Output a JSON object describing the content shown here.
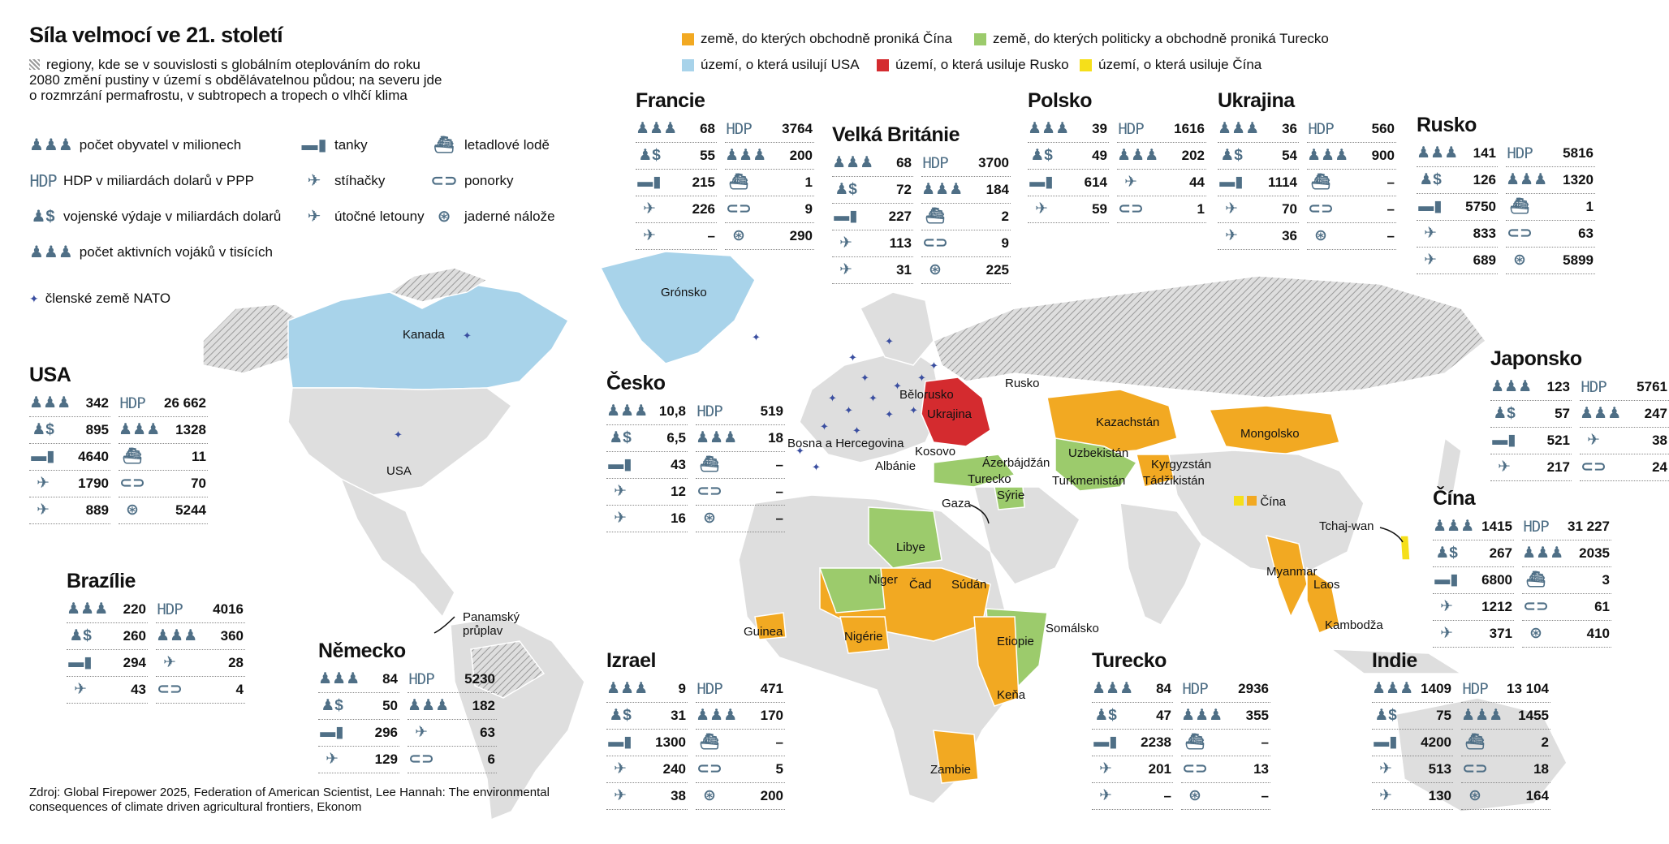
{
  "title": "Síla velmocí ve 21. století",
  "intro": "regiony, kde se v souvislosti s globálním oteplováním do roku 2080 změní pustiny v území s obdělávatelnou půdou; na severu jde o rozmrzání permafrostu, v subtropech a tropech o vlhčí klima",
  "legend": {
    "population": "počet obyvatel v milionech",
    "gdp_icon": "HDP",
    "gdp": "HDP v miliardách dolarů v PPP",
    "military": "vojenské výdaje v miliardách dolarů",
    "soldiers": "počet aktivních vojáků v tisících",
    "tanks": "tanky",
    "fighters": "stíhačky",
    "attack": "útočné letouny",
    "carriers": "letadlové lodě",
    "subs": "ponorky",
    "nukes": "jaderné nálože",
    "nato": "členské země NATO"
  },
  "top_legend": {
    "china_trade": "země, do kterých obchodně proniká Čína",
    "turkey": "země, do kterých politicky a obchodně proniká Turecko",
    "usa": "území, o která usilují USA",
    "russia": "území, o která usiluje Rusko",
    "china": "území, o která usiluje Čína"
  },
  "colors": {
    "china_trade": "#f2a922",
    "turkey": "#9ccb6c",
    "usa": "#a8d3ea",
    "russia": "#d42b2f",
    "china": "#f5df1a",
    "land": "#dedede",
    "icon": "#4f6f86"
  },
  "countries": {
    "usa": {
      "name": "USA",
      "left": [
        {
          "i": "pop",
          "v": "342"
        },
        {
          "i": "mil",
          "v": "895"
        },
        {
          "i": "tank",
          "v": "4640"
        },
        {
          "i": "fight",
          "v": "1790"
        },
        {
          "i": "attack",
          "v": "889"
        }
      ],
      "right": [
        {
          "i": "hdp",
          "v": "26 662"
        },
        {
          "i": "sold",
          "v": "1328"
        },
        {
          "i": "carrier",
          "v": "11"
        },
        {
          "i": "sub",
          "v": "70"
        },
        {
          "i": "nuke",
          "v": "5244"
        }
      ]
    },
    "brazil": {
      "name": "Brazílie",
      "left": [
        {
          "i": "pop",
          "v": "220"
        },
        {
          "i": "mil",
          "v": "260"
        },
        {
          "i": "tank",
          "v": "294"
        },
        {
          "i": "fight",
          "v": "43"
        }
      ],
      "right": [
        {
          "i": "hdp",
          "v": "4016"
        },
        {
          "i": "sold",
          "v": "360"
        },
        {
          "i": "attack",
          "v": "28"
        },
        {
          "i": "sub",
          "v": "4"
        }
      ]
    },
    "germany": {
      "name": "Německo",
      "left": [
        {
          "i": "pop",
          "v": "84"
        },
        {
          "i": "mil",
          "v": "50"
        },
        {
          "i": "tank",
          "v": "296"
        },
        {
          "i": "fight",
          "v": "129"
        }
      ],
      "right": [
        {
          "i": "hdp",
          "v": "5230"
        },
        {
          "i": "sold",
          "v": "182"
        },
        {
          "i": "attack",
          "v": "63"
        },
        {
          "i": "sub",
          "v": "6"
        }
      ]
    },
    "france": {
      "name": "Francie",
      "left": [
        {
          "i": "pop",
          "v": "68"
        },
        {
          "i": "mil",
          "v": "55"
        },
        {
          "i": "tank",
          "v": "215"
        },
        {
          "i": "fight",
          "v": "226"
        },
        {
          "i": "attack",
          "v": "–"
        }
      ],
      "right": [
        {
          "i": "hdp",
          "v": "3764"
        },
        {
          "i": "sold",
          "v": "200"
        },
        {
          "i": "carrier",
          "v": "1"
        },
        {
          "i": "sub",
          "v": "9"
        },
        {
          "i": "nuke",
          "v": "290"
        }
      ]
    },
    "uk": {
      "name": "Velká Británie",
      "left": [
        {
          "i": "pop",
          "v": "68"
        },
        {
          "i": "mil",
          "v": "72"
        },
        {
          "i": "tank",
          "v": "227"
        },
        {
          "i": "fight",
          "v": "113"
        },
        {
          "i": "attack",
          "v": "31"
        }
      ],
      "right": [
        {
          "i": "hdp",
          "v": "3700"
        },
        {
          "i": "sold",
          "v": "184"
        },
        {
          "i": "carrier",
          "v": "2"
        },
        {
          "i": "sub",
          "v": "9"
        },
        {
          "i": "nuke",
          "v": "225"
        }
      ]
    },
    "poland": {
      "name": "Polsko",
      "left": [
        {
          "i": "pop",
          "v": "39"
        },
        {
          "i": "mil",
          "v": "49"
        },
        {
          "i": "tank",
          "v": "614"
        },
        {
          "i": "fight",
          "v": "59"
        }
      ],
      "right": [
        {
          "i": "hdp",
          "v": "1616"
        },
        {
          "i": "sold",
          "v": "202"
        },
        {
          "i": "attack",
          "v": "44"
        },
        {
          "i": "sub",
          "v": "1"
        }
      ]
    },
    "ukraine": {
      "name": "Ukrajina",
      "left": [
        {
          "i": "pop",
          "v": "36"
        },
        {
          "i": "mil",
          "v": "54"
        },
        {
          "i": "tank",
          "v": "1114"
        },
        {
          "i": "fight",
          "v": "70"
        },
        {
          "i": "attack",
          "v": "36"
        }
      ],
      "right": [
        {
          "i": "hdp",
          "v": "560"
        },
        {
          "i": "sold",
          "v": "900"
        },
        {
          "i": "carrier",
          "v": "–"
        },
        {
          "i": "sub",
          "v": "–"
        },
        {
          "i": "nuke",
          "v": "–"
        }
      ]
    },
    "russia": {
      "name": "Rusko",
      "left": [
        {
          "i": "pop",
          "v": "141"
        },
        {
          "i": "mil",
          "v": "126"
        },
        {
          "i": "tank",
          "v": "5750"
        },
        {
          "i": "fight",
          "v": "833"
        },
        {
          "i": "attack",
          "v": "689"
        }
      ],
      "right": [
        {
          "i": "hdp",
          "v": "5816"
        },
        {
          "i": "sold",
          "v": "1320"
        },
        {
          "i": "carrier",
          "v": "1"
        },
        {
          "i": "sub",
          "v": "63"
        },
        {
          "i": "nuke",
          "v": "5899"
        }
      ]
    },
    "czech": {
      "name": "Česko",
      "left": [
        {
          "i": "pop",
          "v": "10,8"
        },
        {
          "i": "mil",
          "v": "6,5"
        },
        {
          "i": "tank",
          "v": "43"
        },
        {
          "i": "fight",
          "v": "12"
        },
        {
          "i": "attack",
          "v": "16"
        }
      ],
      "right": [
        {
          "i": "hdp",
          "v": "519"
        },
        {
          "i": "sold",
          "v": "18"
        },
        {
          "i": "carrier",
          "v": "–"
        },
        {
          "i": "sub",
          "v": "–"
        },
        {
          "i": "nuke",
          "v": "–"
        }
      ]
    },
    "japan": {
      "name": "Japonsko",
      "left": [
        {
          "i": "pop",
          "v": "123"
        },
        {
          "i": "mil",
          "v": "57"
        },
        {
          "i": "tank",
          "v": "521"
        },
        {
          "i": "fight",
          "v": "217"
        }
      ],
      "right": [
        {
          "i": "hdp",
          "v": "5761"
        },
        {
          "i": "sold",
          "v": "247"
        },
        {
          "i": "attack",
          "v": "38"
        },
        {
          "i": "sub",
          "v": "24"
        }
      ]
    },
    "china": {
      "name": "Čína",
      "left": [
        {
          "i": "pop",
          "v": "1415"
        },
        {
          "i": "mil",
          "v": "267"
        },
        {
          "i": "tank",
          "v": "6800"
        },
        {
          "i": "fight",
          "v": "1212"
        },
        {
          "i": "attack",
          "v": "371"
        }
      ],
      "right": [
        {
          "i": "hdp",
          "v": "31 227"
        },
        {
          "i": "sold",
          "v": "2035"
        },
        {
          "i": "carrier",
          "v": "3"
        },
        {
          "i": "sub",
          "v": "61"
        },
        {
          "i": "nuke",
          "v": "410"
        }
      ]
    },
    "israel": {
      "name": "Izrael",
      "left": [
        {
          "i": "pop",
          "v": "9"
        },
        {
          "i": "mil",
          "v": "31"
        },
        {
          "i": "tank",
          "v": "1300"
        },
        {
          "i": "fight",
          "v": "240"
        },
        {
          "i": "attack",
          "v": "38"
        }
      ],
      "right": [
        {
          "i": "hdp",
          "v": "471"
        },
        {
          "i": "sold",
          "v": "170"
        },
        {
          "i": "carrier",
          "v": "–"
        },
        {
          "i": "sub",
          "v": "5"
        },
        {
          "i": "nuke",
          "v": "200"
        }
      ]
    },
    "turkey": {
      "name": "Turecko",
      "left": [
        {
          "i": "pop",
          "v": "84"
        },
        {
          "i": "mil",
          "v": "47"
        },
        {
          "i": "tank",
          "v": "2238"
        },
        {
          "i": "fight",
          "v": "201"
        },
        {
          "i": "attack",
          "v": "–"
        }
      ],
      "right": [
        {
          "i": "hdp",
          "v": "2936"
        },
        {
          "i": "sold",
          "v": "355"
        },
        {
          "i": "carrier",
          "v": "–"
        },
        {
          "i": "sub",
          "v": "13"
        },
        {
          "i": "nuke",
          "v": "–"
        }
      ]
    },
    "india": {
      "name": "Indie",
      "left": [
        {
          "i": "pop",
          "v": "1409"
        },
        {
          "i": "mil",
          "v": "75"
        },
        {
          "i": "tank",
          "v": "4200"
        },
        {
          "i": "fight",
          "v": "513"
        },
        {
          "i": "attack",
          "v": "130"
        }
      ],
      "right": [
        {
          "i": "hdp",
          "v": "13 104"
        },
        {
          "i": "sold",
          "v": "1455"
        },
        {
          "i": "carrier",
          "v": "2"
        },
        {
          "i": "sub",
          "v": "18"
        },
        {
          "i": "nuke",
          "v": "164"
        }
      ]
    }
  },
  "map_labels": {
    "greenland": "Grónsko",
    "canada": "Kanada",
    "usa": "USA",
    "panama": "Panamský průplav",
    "russia": "Rusko",
    "belarus": "Bělorusko",
    "ukraine": "Ukrajina",
    "bosnia": "Bosna a Hercegovina",
    "kosovo": "Kosovo",
    "albania": "Albánie",
    "azerbaijan": "Ázerbájdžán",
    "turkey": "Turecko",
    "syria": "Sýrie",
    "gaza": "Gaza",
    "kazakhstan": "Kazachstán",
    "uzbekistan": "Uzbekistán",
    "turkmenistan": "Turkmenistán",
    "kyrgyzstan": "Kyrgyzstán",
    "tajikistan": "Tádžikistán",
    "mongolia": "Mongolsko",
    "china": "Čína",
    "taiwan": "Tchaj-wan",
    "myanmar": "Myanmar",
    "laos": "Laos",
    "cambodia": "Kambodža",
    "libya": "Libye",
    "niger": "Niger",
    "chad": "Čad",
    "sudan": "Súdán",
    "guinea": "Guinea",
    "nigeria": "Nigérie",
    "ethiopia": "Etiopie",
    "somalia": "Somálsko",
    "kenya": "Keňa",
    "zambia": "Zambie"
  },
  "source": "Zdroj: Global Firepower 2025, Federation of American Scientist, Lee Hannah: The environmental consequences of climate driven agricultural frontiers, Ekonom"
}
